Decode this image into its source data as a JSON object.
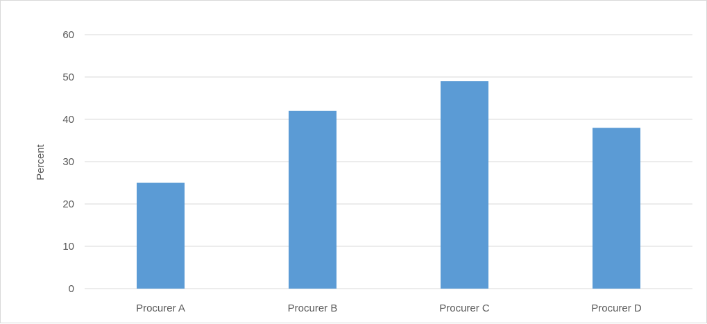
{
  "chart_data": {
    "type": "bar",
    "title": "",
    "xlabel": "",
    "ylabel": "Percent",
    "categories": [
      "Procurer A",
      "Procurer B",
      "Procurer C",
      "Procurer D"
    ],
    "values": [
      25,
      42,
      49,
      38
    ],
    "ylim": [
      0,
      60
    ],
    "yticks": [
      0,
      10,
      20,
      30,
      40,
      50,
      60
    ],
    "grid": true,
    "legend": "none",
    "bar_color": "#5b9bd5",
    "grid_color": "#d9d9d9",
    "text_color": "#595959"
  }
}
